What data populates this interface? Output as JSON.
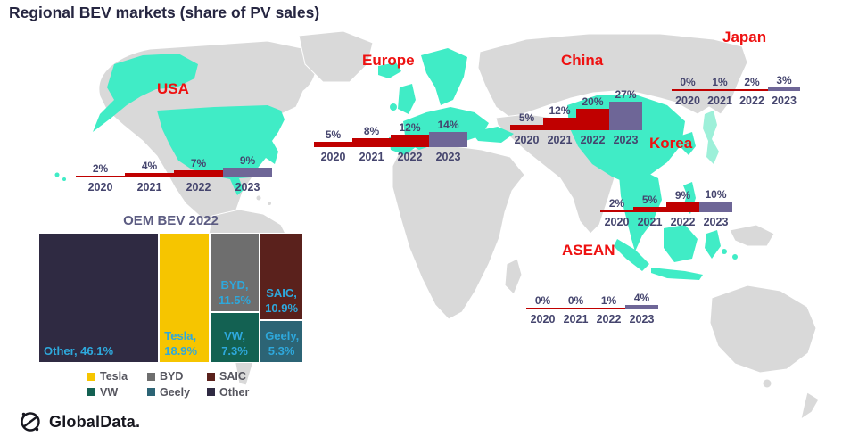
{
  "title": "Regional BEV markets (share of PV sales)",
  "colors": {
    "bar_red": "#c00000",
    "bar_2023_purple": "#6e6697",
    "region_label_red": "#ee1111",
    "axis_text": "#45456e",
    "title_text": "#262641",
    "map_land_gray": "#d9d9d9",
    "map_highlight_teal": "#40ecc6",
    "map_japan_teal": "#9df0d9",
    "treemap_label_blue": "#2ea8dc"
  },
  "chart_data": [
    {
      "type": "bar",
      "region": "USA",
      "categories": [
        "2020",
        "2021",
        "2022",
        "2023"
      ],
      "values": [
        2,
        4,
        7,
        9
      ],
      "unit": "%"
    },
    {
      "type": "bar",
      "region": "Europe",
      "categories": [
        "2020",
        "2021",
        "2022",
        "2023"
      ],
      "values": [
        5,
        8,
        12,
        14
      ],
      "unit": "%"
    },
    {
      "type": "bar",
      "region": "China",
      "categories": [
        "2020",
        "2021",
        "2022",
        "2023"
      ],
      "values": [
        5,
        12,
        20,
        27
      ],
      "unit": "%"
    },
    {
      "type": "bar",
      "region": "Japan",
      "categories": [
        "2020",
        "2021",
        "2022",
        "2023"
      ],
      "values": [
        0,
        1,
        2,
        3
      ],
      "unit": "%"
    },
    {
      "type": "bar",
      "region": "Korea",
      "categories": [
        "2020",
        "2021",
        "2022",
        "2023"
      ],
      "values": [
        2,
        5,
        9,
        10
      ],
      "unit": "%"
    },
    {
      "type": "bar",
      "region": "ASEAN",
      "categories": [
        "2020",
        "2021",
        "2022",
        "2023"
      ],
      "values": [
        0,
        0,
        1,
        4
      ],
      "unit": "%"
    },
    {
      "type": "treemap",
      "title": "OEM BEV 2022",
      "unit": "%",
      "segments": [
        {
          "name": "Other",
          "value": 46.1,
          "color": "#2f2a42"
        },
        {
          "name": "Tesla",
          "value": 18.9,
          "color": "#f6c500"
        },
        {
          "name": "BYD",
          "value": 11.5,
          "color": "#6e6e6e"
        },
        {
          "name": "SAIC",
          "value": 10.9,
          "color": "#5a211c"
        },
        {
          "name": "VW",
          "value": 7.3,
          "color": "#136152"
        },
        {
          "name": "Geely",
          "value": 5.3,
          "color": "#2c6475"
        }
      ]
    }
  ],
  "legend": {
    "rows": [
      [
        {
          "label": "Tesla",
          "color": "#f6c500"
        },
        {
          "label": "BYD",
          "color": "#6e6e6e"
        },
        {
          "label": "SAIC",
          "color": "#5a211c"
        }
      ],
      [
        {
          "label": "VW",
          "color": "#136152"
        },
        {
          "label": "Geely",
          "color": "#2c6475"
        },
        {
          "label": "Other",
          "color": "#2f2a42"
        }
      ]
    ]
  },
  "logo": {
    "text": "GlobalData."
  }
}
